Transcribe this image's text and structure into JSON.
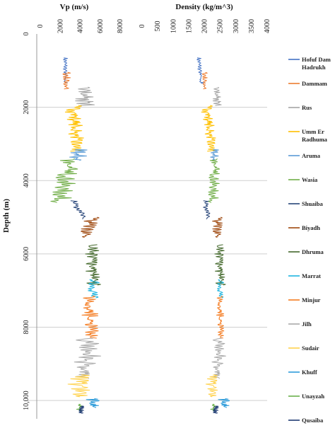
{
  "chart_data": {
    "type": "line",
    "title": "",
    "ylabel": "Depth (m)",
    "ylim": [
      0,
      10500
    ],
    "y_inverted": true,
    "y_ticks": [
      "0",
      "2000",
      "4000",
      "6000",
      "8000",
      "10,000"
    ],
    "y_tick_values": [
      0,
      2000,
      4000,
      6000,
      8000,
      10000
    ],
    "grid": "horizontal lines at 2000 m intervals",
    "legend_position": "right",
    "panels": [
      {
        "id": "vp",
        "xlabel": "Vp (m/s)",
        "xlim": [
          0,
          8000
        ],
        "x_ticks": [
          "0",
          "2000",
          "4000",
          "6000",
          "8000"
        ],
        "x_tick_values": [
          0,
          2000,
          4000,
          6000,
          8000
        ]
      },
      {
        "id": "density",
        "xlabel": "Density (kg/m^3)",
        "xlim": [
          0,
          4000
        ],
        "x_ticks": [
          "0",
          "500",
          "1000",
          "1500",
          "2000",
          "2500",
          "3000",
          "3500",
          "4000"
        ],
        "x_tick_values": [
          0,
          500,
          1000,
          1500,
          2000,
          2500,
          3000,
          3500,
          4000
        ]
      }
    ],
    "series": [
      {
        "name": "Hofuf Dam Hadrukh",
        "color": "#4472C4",
        "depth": [
          650,
          1350
        ],
        "vp": {
          "center": 2500,
          "amp": 250,
          "trend": 0
        },
        "density": {
          "center": 1850,
          "amp": 80,
          "trend": 80
        }
      },
      {
        "name": "Dammam",
        "color": "#ED7D31",
        "depth": [
          1050,
          1500
        ],
        "vp": {
          "center": 2600,
          "amp": 500,
          "trend": 0
        },
        "density": {
          "center": 2000,
          "amp": 100,
          "trend": 0
        }
      },
      {
        "name": "Rus",
        "color": "#A5A5A5",
        "depth": [
          1450,
          1950
        ],
        "vp": {
          "center": 4500,
          "amp": 1300,
          "trend": 600
        },
        "density": {
          "center": 2400,
          "amp": 180,
          "trend": 100
        }
      },
      {
        "name": "Umm Er Radhuma",
        "color": "#FFC000",
        "depth": [
          1950,
          3200
        ],
        "vp": {
          "center": 3500,
          "amp": 900,
          "trend": 300
        },
        "density": {
          "center": 2150,
          "amp": 200,
          "trend": 150
        }
      },
      {
        "name": "Aruma",
        "color": "#5B9BD5",
        "depth": [
          3150,
          3450
        ],
        "vp": {
          "center": 3700,
          "amp": 1000,
          "trend": 0
        },
        "density": {
          "center": 2300,
          "amp": 150,
          "trend": 0
        }
      },
      {
        "name": "Wasia",
        "color": "#70AD47",
        "depth": [
          3400,
          4600
        ],
        "vp": {
          "center": 2500,
          "amp": 1100,
          "trend": -1200
        },
        "density": {
          "center": 2300,
          "amp": 180,
          "trend": -100
        }
      },
      {
        "name": "Shuaiba",
        "color": "#264478",
        "depth": [
          4550,
          5050
        ],
        "vp": {
          "center": 3800,
          "amp": 500,
          "trend": 1200
        },
        "density": {
          "center": 2050,
          "amp": 130,
          "trend": 100
        }
      },
      {
        "name": "Biyadh",
        "color": "#9E480E",
        "depth": [
          5000,
          5550
        ],
        "vp": {
          "center": 4800,
          "amp": 1100,
          "trend": -800
        },
        "density": {
          "center": 2400,
          "amp": 250,
          "trend": 0
        }
      },
      {
        "name": "Dhruma",
        "color": "#43682B",
        "depth": [
          5750,
          6850
        ],
        "vp": {
          "center": 5300,
          "amp": 800,
          "trend": 0
        },
        "density": {
          "center": 2500,
          "amp": 180,
          "trend": 0
        }
      },
      {
        "name": "Marrat",
        "color": "#1FB5E0",
        "depth": [
          6700,
          7200
        ],
        "vp": {
          "center": 5300,
          "amp": 700,
          "trend": 0
        },
        "density": {
          "center": 2500,
          "amp": 130,
          "trend": 0
        }
      },
      {
        "name": "Minjur",
        "color": "#F47B20",
        "depth": [
          7150,
          8300
        ],
        "vp": {
          "center": 5000,
          "amp": 900,
          "trend": 0
        },
        "density": {
          "center": 2500,
          "amp": 130,
          "trend": 0
        }
      },
      {
        "name": "Jilh",
        "color": "#A9A9A9",
        "depth": [
          8300,
          9400
        ],
        "vp": {
          "center": 4700,
          "amp": 1500,
          "trend": 0
        },
        "density": {
          "center": 2450,
          "amp": 250,
          "trend": 0
        }
      },
      {
        "name": "Sudair",
        "color": "#FFD24D",
        "depth": [
          9300,
          9900
        ],
        "vp": {
          "center": 4000,
          "amp": 1300,
          "trend": 0
        },
        "density": {
          "center": 2250,
          "amp": 220,
          "trend": 0
        }
      },
      {
        "name": "Khuff",
        "color": "#2E9CDA",
        "depth": [
          9950,
          10200
        ],
        "vp": {
          "center": 5200,
          "amp": 900,
          "trend": 0
        },
        "density": {
          "center": 2600,
          "amp": 250,
          "trend": 0
        }
      },
      {
        "name": "Unayzah",
        "color": "#6AB04C",
        "depth": [
          10100,
          10300
        ],
        "vp": {
          "center": 4000,
          "amp": 400,
          "trend": 0
        },
        "density": {
          "center": 2300,
          "amp": 120,
          "trend": 0
        }
      },
      {
        "name": "Qusaiba",
        "color": "#1F3B73",
        "depth": [
          10150,
          10350
        ],
        "vp": {
          "center": 4100,
          "amp": 300,
          "trend": 0
        },
        "density": {
          "center": 2350,
          "amp": 100,
          "trend": 0
        }
      }
    ]
  }
}
